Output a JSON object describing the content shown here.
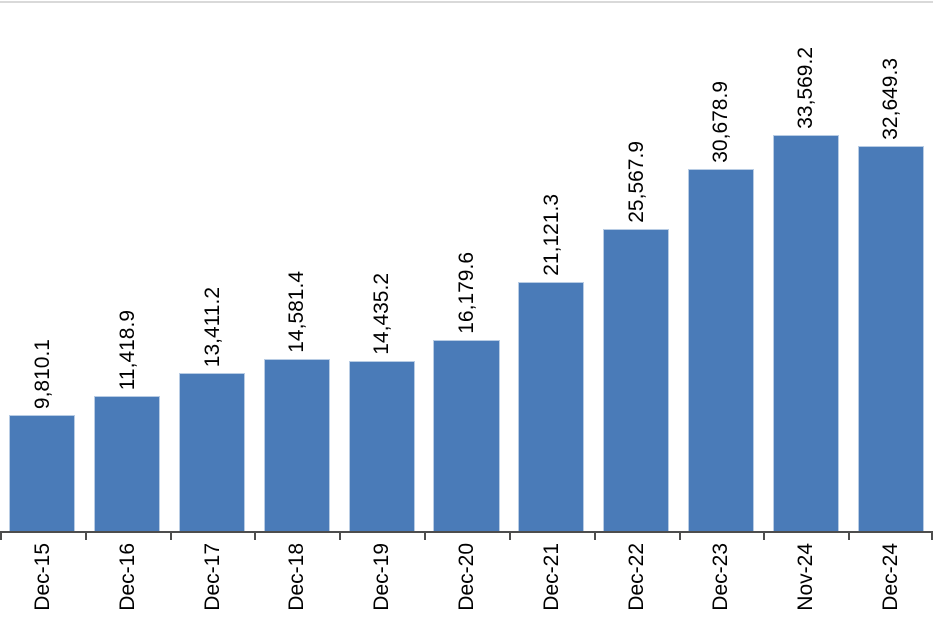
{
  "chart_data": {
    "type": "bar",
    "title": "",
    "xlabel": "",
    "ylabel": "",
    "categories": [
      "Dec-15",
      "Dec-16",
      "Dec-17",
      "Dec-18",
      "Dec-19",
      "Dec-20",
      "Dec-21",
      "Dec-22",
      "Dec-23",
      "Nov-24",
      "Dec-24"
    ],
    "values": [
      9810.1,
      11418.9,
      13411.2,
      14581.4,
      14435.2,
      16179.6,
      21121.3,
      25567.9,
      30678.9,
      33569.2,
      32649.3
    ],
    "data_labels": [
      "9,810.1",
      "11,418.9",
      "13,411.2",
      "14,581.4",
      "14,435.2",
      "16,179.6",
      "21,121.3",
      "25,567.9",
      "30,678.9",
      "33,569.2",
      "32,649.3"
    ],
    "ylim": [
      0,
      33569.2
    ],
    "grid": false,
    "legend": "none",
    "label_rotation_degrees": 90,
    "colors": {
      "bar_fill": "#4a7bb8",
      "bar_border": "#b8cce4",
      "axis_line": "#4d4d4d",
      "top_border_line": "#d9d9d9",
      "label_text": "#000000"
    }
  }
}
